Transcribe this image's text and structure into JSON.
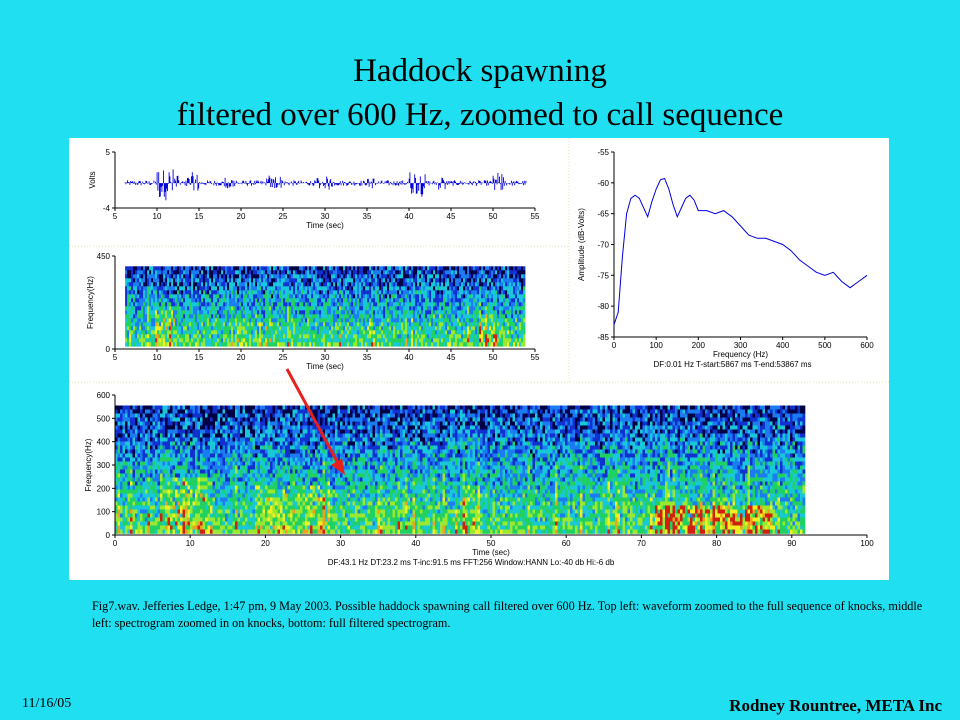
{
  "title": {
    "line1": "Haddock spawning",
    "line2": "filtered over 600 Hz, zoomed to call sequence"
  },
  "caption": "Fig7.wav.  Jefferies Ledge, 1:47 pm, 9 May 2003.  Possible haddock spawning call filtered over 600 Hz. Top left: waveform zoomed to the full sequence of knocks, middle left: spectrogram  zoomed in on knocks, bottom: full filtered spectrogram.",
  "footer": {
    "date": "11/16/05",
    "author": "Rodney Rountree, META Inc"
  },
  "colors": {
    "background": "#1fdff0",
    "waveform": "#0000dd",
    "arrow": "#e8201c"
  },
  "chart_data": [
    {
      "id": "waveform",
      "type": "line",
      "xlabel": "Time (sec)",
      "ylabel": "Volts",
      "xlim": [
        5,
        55
      ],
      "ylim": [
        -4,
        5
      ],
      "xticks": [
        5,
        10,
        15,
        20,
        25,
        30,
        35,
        40,
        45,
        50,
        55
      ],
      "yticks": [
        -4,
        5
      ],
      "signal_range": [
        6.2,
        54
      ],
      "bursts": [
        {
          "start": 10,
          "end": 12.5,
          "amp": 3.5
        },
        {
          "start": 13.5,
          "end": 15,
          "amp": 2
        },
        {
          "start": 18,
          "end": 19.5,
          "amp": 1.5
        },
        {
          "start": 23,
          "end": 25,
          "amp": 1.6
        },
        {
          "start": 29,
          "end": 31,
          "amp": 1.4
        },
        {
          "start": 35,
          "end": 36,
          "amp": 1.2
        },
        {
          "start": 40,
          "end": 42,
          "amp": 2.5
        },
        {
          "start": 43.5,
          "end": 44.5,
          "amp": 1.5
        },
        {
          "start": 50,
          "end": 51.5,
          "amp": 2.2
        }
      ]
    },
    {
      "id": "spectrogram_zoom",
      "type": "heatmap",
      "xlabel": "Time (sec)",
      "ylabel": "Frequency(Hz)",
      "xlim": [
        5,
        55
      ],
      "ylim": [
        0,
        450
      ],
      "xticks": [
        5,
        10,
        15,
        20,
        25,
        30,
        35,
        40,
        45,
        50,
        55
      ],
      "yticks": [
        0,
        450
      ],
      "signal_range": [
        6.2,
        54
      ]
    },
    {
      "id": "spectrum",
      "type": "line",
      "xlabel": "Frequency (Hz)",
      "ylabel": "Amplitude (dB-Volts)",
      "xlim": [
        0,
        600
      ],
      "ylim": [
        -85,
        -55
      ],
      "xticks": [
        0,
        100,
        200,
        300,
        400,
        500,
        600
      ],
      "yticks": [
        -85,
        -80,
        -75,
        -70,
        -65,
        -60,
        -55
      ],
      "x": [
        0,
        10,
        20,
        30,
        40,
        50,
        60,
        70,
        80,
        90,
        100,
        110,
        120,
        130,
        140,
        150,
        160,
        170,
        180,
        190,
        200,
        220,
        240,
        260,
        280,
        300,
        320,
        340,
        360,
        380,
        400,
        420,
        440,
        460,
        480,
        500,
        520,
        540,
        560,
        580,
        600
      ],
      "y": [
        -83,
        -81,
        -72,
        -65,
        -62.5,
        -62,
        -62.5,
        -64,
        -65.5,
        -63,
        -61,
        -59.5,
        -59.3,
        -61,
        -63.5,
        -65.5,
        -64,
        -62.5,
        -62,
        -62.8,
        -64.5,
        -64.5,
        -65,
        -64.5,
        -65.5,
        -67,
        -68.5,
        -69,
        -69,
        -69.5,
        -70,
        -71,
        -72.5,
        -73.5,
        -74.5,
        -75,
        -74.5,
        -76,
        -77,
        -76,
        -75
      ],
      "footer": "DF:0.01 Hz     T-start:5867 ms     T-end:53867 ms"
    },
    {
      "id": "spectrogram_full",
      "type": "heatmap",
      "xlabel": "Time (sec)",
      "ylabel": "Frequency(Hz)",
      "xlim": [
        0,
        100
      ],
      "ylim": [
        0,
        600
      ],
      "xticks": [
        0,
        10,
        20,
        30,
        40,
        50,
        60,
        70,
        80,
        90,
        100
      ],
      "yticks": [
        0,
        100,
        200,
        300,
        400,
        500,
        600
      ],
      "signal_range": [
        0,
        92
      ],
      "footer": "DF:43.1 Hz    DT:23.2 ms    T-inc:91.5 ms    FFT:256    Window:HANN    Lo:-40 db    Hi:-6 db"
    }
  ]
}
